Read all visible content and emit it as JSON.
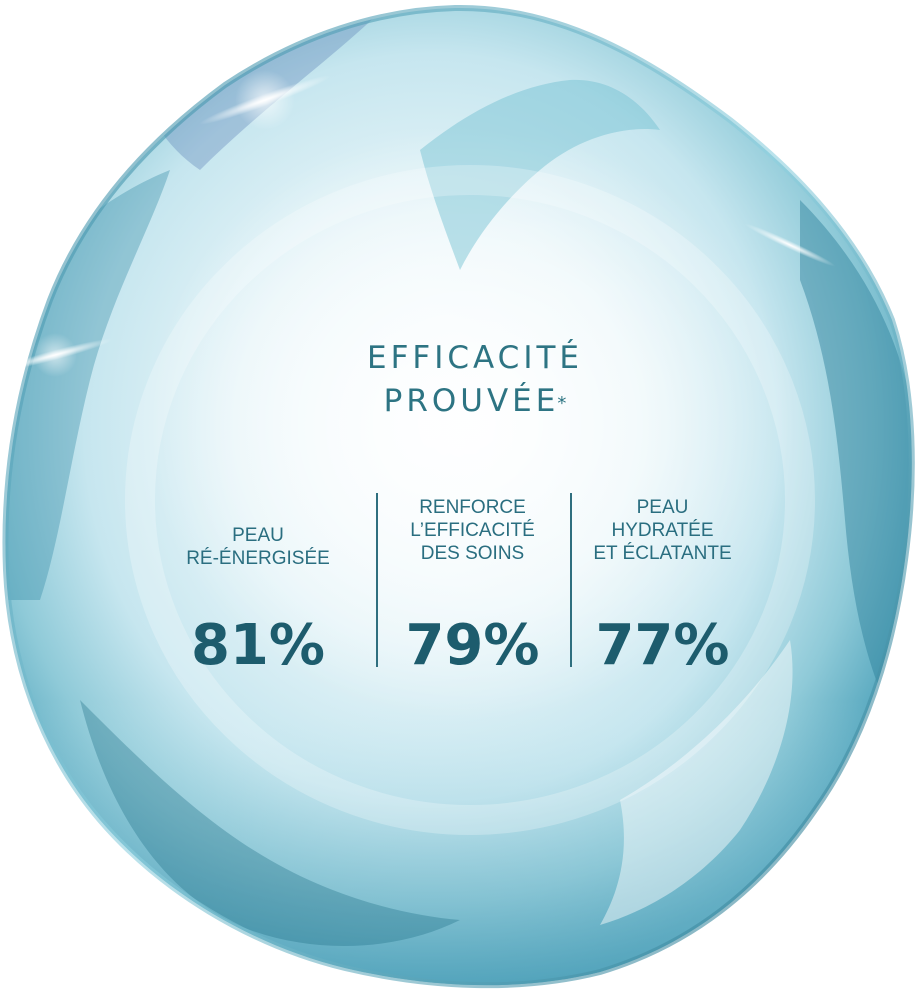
{
  "title": {
    "line1": "EFFICACITÉ",
    "line2": "PROUVÉE",
    "star": "*"
  },
  "stats": [
    {
      "label": "PEAU\nRÉ-ÉNERGISÉE",
      "value": "81%"
    },
    {
      "label": "RENFORCE\nL’EFFICACITÉ\nDES SOINS",
      "value": "79%"
    },
    {
      "label": "PEAU\nHYDRATÉE\nET ÉCLATANTE",
      "value": "77%"
    }
  ],
  "colors": {
    "text": "#1f5f70",
    "title": "#2d7483",
    "bubble_highlight": "#ffffff",
    "bubble_ice": "#b9e0ea",
    "bubble_deep": "#1f6f88"
  }
}
